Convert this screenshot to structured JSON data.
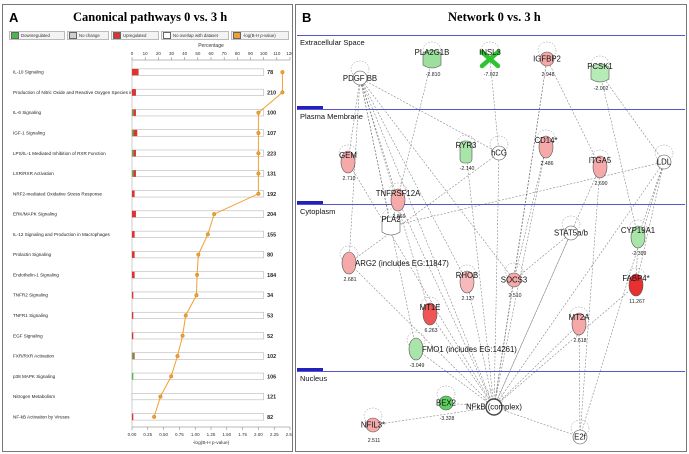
{
  "panel_a": {
    "label": "A",
    "title": "Canonical pathways   0 vs. 3 h",
    "legend": [
      {
        "label": "Downregulated",
        "color": "#44bb44"
      },
      {
        "label": "No change",
        "color": "#cfcfcf"
      },
      {
        "label": "Upregulated",
        "color": "#dd3333"
      },
      {
        "label": "No overlap with dataset",
        "color": "#ffffff"
      },
      {
        "label": "-log(B-H p-value)",
        "color": "#f0a030"
      }
    ]
  },
  "panel_b": {
    "label": "B",
    "title": "Network  0 vs. 3 h",
    "sections": [
      "Extracellular Space",
      "Plasma Membrane",
      "Cytoplasm",
      "Nucleus"
    ],
    "nodes": [
      {
        "id": "PDGFBB",
        "label": "PDGF BB",
        "value": "",
        "color": "#ffffff"
      },
      {
        "id": "PLA2G1B",
        "label": "PLA2G1B",
        "value": "-2.810",
        "color": "#9de09d"
      },
      {
        "id": "INSL3",
        "label": "INSL3",
        "value": "-7.022",
        "color": "#2fc42f"
      },
      {
        "id": "IGFBP2",
        "label": "IGFBP2",
        "value": "2.948",
        "color": "#f5a9a9"
      },
      {
        "id": "PCSK1",
        "label": "PCSK1",
        "value": "-2.002",
        "color": "#b6eab6"
      },
      {
        "id": "GEM",
        "label": "GEM",
        "value": "2.710",
        "color": "#f5a9a9"
      },
      {
        "id": "RYR3",
        "label": "RYR3",
        "value": "-2.140",
        "color": "#a9e4a9"
      },
      {
        "id": "hCG",
        "label": "hCG",
        "value": "",
        "color": "#ffffff"
      },
      {
        "id": "CD14",
        "label": "CD14*",
        "value": "2.486",
        "color": "#f5a9a9"
      },
      {
        "id": "ITGA5",
        "label": "ITGA5",
        "value": "2.690",
        "color": "#f5a9a9"
      },
      {
        "id": "LDL",
        "label": "LDL",
        "value": "",
        "color": "#ffffff"
      },
      {
        "id": "TNFRSF12A",
        "label": "TNFRSF12A",
        "value": "2.869",
        "color": "#f5a9a9"
      },
      {
        "id": "PLA2",
        "label": "PLA2",
        "value": "",
        "color": "#ffffff"
      },
      {
        "id": "STAT5ab",
        "label": "STAT5a/b",
        "value": "",
        "color": "#ffffff"
      },
      {
        "id": "CYP19A1",
        "label": "CYP19A1",
        "value": "-2.399",
        "color": "#a9e4a9"
      },
      {
        "id": "ARG2",
        "label": "ARG2 (includes EG:11847)",
        "value": "2.681",
        "color": "#f5a9a9"
      },
      {
        "id": "RHOB",
        "label": "RHOB",
        "value": "2.137",
        "color": "#f7b9b9"
      },
      {
        "id": "SOCS3",
        "label": "SOCS3",
        "value": "2.510",
        "color": "#f5a9a9"
      },
      {
        "id": "FABP4",
        "label": "FABP4*",
        "value": "11.267",
        "color": "#e83030"
      },
      {
        "id": "MT1E",
        "label": "MT1E",
        "value": "6.263",
        "color": "#ee5555"
      },
      {
        "id": "MT2A",
        "label": "MT2A",
        "value": "2.618",
        "color": "#f5a9a9"
      },
      {
        "id": "FMO1",
        "label": "FMO1 (includes EG:14261)",
        "value": "-3.049",
        "color": "#a9e4a9"
      },
      {
        "id": "BEX2",
        "label": "BEX2",
        "value": "-3.328",
        "color": "#5fd05f"
      },
      {
        "id": "NFKB",
        "label": "NFkB (complex)",
        "value": "",
        "color": "#ffffff"
      },
      {
        "id": "NFIL3",
        "label": "NFIL3*",
        "value": "2.511",
        "color": "#f5a9a9"
      },
      {
        "id": "E2F",
        "label": "E2f",
        "value": "",
        "color": "#ffffff"
      }
    ]
  },
  "chart_data": {
    "type": "bar",
    "title": "Canonical pathways   0 vs. 3 h",
    "x_top_label": "Percentage",
    "x_top_ticks": [
      0,
      10,
      20,
      30,
      40,
      50,
      60,
      70,
      80,
      90,
      100,
      110,
      120
    ],
    "x_bottom_label": "-log(B-H p-value)",
    "x_bottom_ticks": [
      "0.00",
      "0.25",
      "0.50",
      "0.75",
      "1.00",
      "1.25",
      "1.50",
      "1.75",
      "2.00",
      "2.25",
      "2.50"
    ],
    "xlim_percentage": [
      0,
      120
    ],
    "xlim_log": [
      0,
      2.5
    ],
    "categories": [
      "IL-10 Signaling",
      "Production of Nitric Oxide and Reactive Oxygen Species in Macrophages",
      "IL-6 Signaling",
      "IGF-1 Signaling",
      "LPS/IL-1 Mediated Inhibition of RXR Function",
      "LXR/RXR Activation",
      "NRF2-mediated Oxidative Stress Response",
      "ERK/MAPK Signaling",
      "IL-12 Signaling and Production in Macrophages",
      "Prolactin Signaling",
      "Endothelin-1 Signaling",
      "TNFR2 Signaling",
      "TNFR1 Signaling",
      "EGF Signaling",
      "FXR/RXR Activation",
      "p38 MAPK Signaling",
      "Nitrogen Metabolism",
      "NF-kB Activation by Viruses"
    ],
    "totals": [
      78,
      210,
      100,
      107,
      223,
      131,
      192,
      204,
      155,
      80,
      184,
      34,
      53,
      52,
      102,
      106,
      121,
      82
    ],
    "series": [
      {
        "name": "Downregulated",
        "color": "#44bb44",
        "values": [
          0,
          0,
          1,
          1,
          1,
          1,
          0,
          0,
          0,
          0,
          0,
          0,
          0,
          0,
          1,
          1,
          0,
          0
        ]
      },
      {
        "name": "Upregulated",
        "color": "#dd3333",
        "values": [
          5,
          3,
          2,
          3,
          2,
          2,
          2,
          3,
          2,
          2,
          2,
          1,
          1,
          1,
          1,
          0,
          0,
          1
        ]
      },
      {
        "name": "-log(B-H p-value)",
        "color": "#f0a030",
        "values": [
          2.38,
          2.38,
          2.0,
          2.0,
          2.0,
          2.0,
          2.0,
          1.3,
          1.2,
          1.05,
          1.03,
          1.02,
          0.85,
          0.8,
          0.72,
          0.62,
          0.45,
          0.35
        ]
      }
    ],
    "legend_position": "top"
  }
}
